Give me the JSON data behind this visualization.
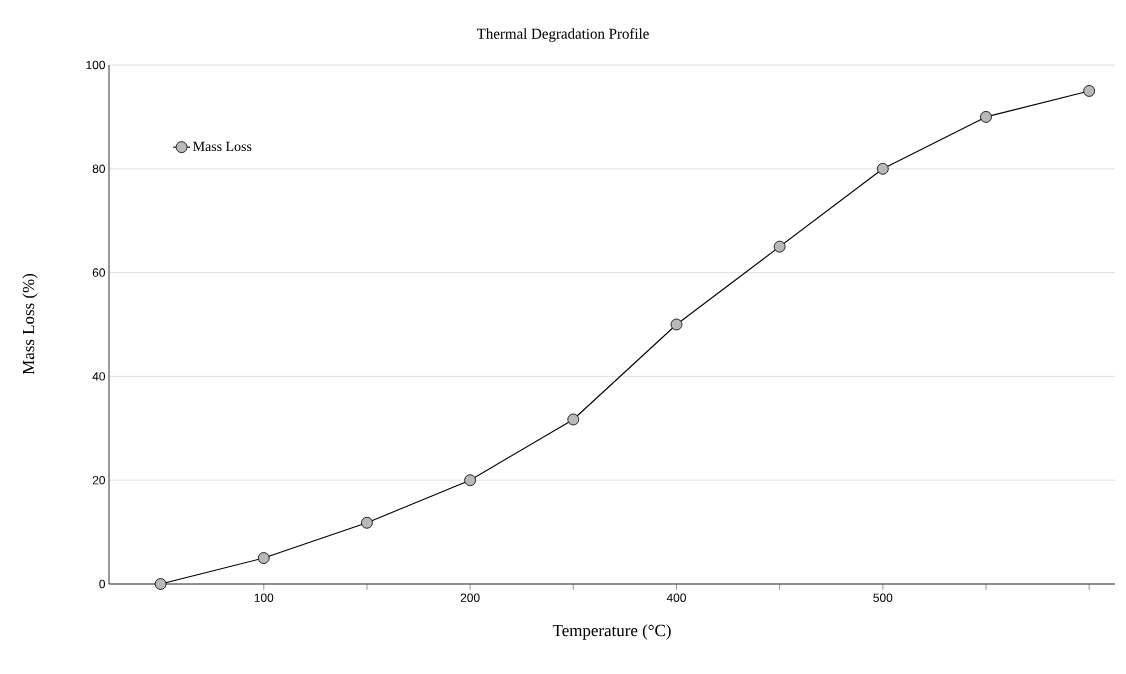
{
  "chart_data": {
    "type": "line",
    "title": "Thermal Degradation Profile",
    "xlabel": "Temperature (°C)",
    "ylabel": "Mass Loss (%)",
    "categories": [
      null,
      "100",
      null,
      "200",
      null,
      "400",
      null,
      "500",
      null,
      null
    ],
    "series": [
      {
        "name": "Mass Loss",
        "color": "#000000",
        "values": [
          0,
          5,
          11.8,
          20,
          31.7,
          50,
          65,
          80,
          90,
          95
        ]
      }
    ],
    "ylim": [
      0,
      100
    ],
    "yticks": [
      0,
      20,
      40,
      60,
      80,
      100
    ],
    "grid": "y",
    "legend": "top left",
    "marker": "circle",
    "line_style": "solid"
  }
}
